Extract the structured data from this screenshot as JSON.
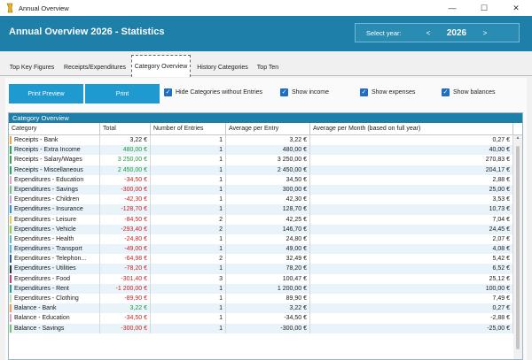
{
  "window": {
    "title": "Annual Overview",
    "minimize": "—",
    "maximize": "☐",
    "close": "✕"
  },
  "header": {
    "title": "Annual Overview  2026 - Statistics",
    "select_year_label": "Select year:",
    "prev": "<",
    "year": "2026",
    "next": ">"
  },
  "tabs": [
    "Top Key Figures",
    "Receipts/Expenditures",
    "Category Overview",
    "History Categories",
    "Top Ten"
  ],
  "toolbar": {
    "print_preview": "Print Preview",
    "print": "Print",
    "checkboxes": [
      {
        "label": "Hide Categories without Entries",
        "checked": true
      },
      {
        "label": "Show income",
        "checked": true
      },
      {
        "label": "Show expenses",
        "checked": true
      },
      {
        "label": "Show balances",
        "checked": true
      }
    ]
  },
  "grid": {
    "title": "Category Overview",
    "columns": [
      "Category",
      "Total",
      "Number of Entries",
      "Average per Entry",
      "Average per Month (based on full year)"
    ],
    "rows": [
      {
        "category": "Receipts - Bank",
        "total": "3,22 €",
        "entries": "1",
        "avg_entry": "3,22 €",
        "avg_month": "0,27 €",
        "color": "#f4a340",
        "tone": "neutral"
      },
      {
        "category": "Receipts - Extra Income",
        "total": "480,00 €",
        "entries": "1",
        "avg_entry": "480,00 €",
        "avg_month": "40,00 €",
        "color": "#2fa84f",
        "tone": "pos"
      },
      {
        "category": "Receipts - Salary/Wages",
        "total": "3 250,00 €",
        "entries": "1",
        "avg_entry": "3 250,00 €",
        "avg_month": "270,83 €",
        "color": "#2fa84f",
        "tone": "pos"
      },
      {
        "category": "Receipts - Miscellaneous",
        "total": "2 450,00 €",
        "entries": "1",
        "avg_entry": "2 450,00 €",
        "avg_month": "204,17 €",
        "color": "#2fa84f",
        "tone": "pos"
      },
      {
        "category": "Expenditures - Education",
        "total": "-34,50 €",
        "entries": "1",
        "avg_entry": "34,50 €",
        "avg_month": "2,88 €",
        "color": "#e7a0c8",
        "tone": "neg"
      },
      {
        "category": "Expenditures - Savings",
        "total": "-300,00 €",
        "entries": "1",
        "avg_entry": "300,00 €",
        "avg_month": "25,00 €",
        "color": "#7cc36a",
        "tone": "neg"
      },
      {
        "category": "Expenditures - Children",
        "total": "-42,30 €",
        "entries": "1",
        "avg_entry": "42,30 €",
        "avg_month": "3,53 €",
        "color": "#c5a0d8",
        "tone": "neg"
      },
      {
        "category": "Expenditures - Insurance",
        "total": "-128,70 €",
        "entries": "1",
        "avg_entry": "128,70 €",
        "avg_month": "10,73 €",
        "color": "#3b8fd1",
        "tone": "neg"
      },
      {
        "category": "Expenditures - Leisure",
        "total": "-84,50 €",
        "entries": "2",
        "avg_entry": "42,25 €",
        "avg_month": "7,04 €",
        "color": "#f2c94c",
        "tone": "neg"
      },
      {
        "category": "Expenditures - Vehicle",
        "total": "-293,40 €",
        "entries": "2",
        "avg_entry": "146,70 €",
        "avg_month": "24,45 €",
        "color": "#9acd32",
        "tone": "neg"
      },
      {
        "category": "Expenditures - Health",
        "total": "-24,80 €",
        "entries": "1",
        "avg_entry": "24,80 €",
        "avg_month": "2,07 €",
        "color": "#4fc3c9",
        "tone": "neg"
      },
      {
        "category": "Expenditures - Transport",
        "total": "-49,00 €",
        "entries": "1",
        "avg_entry": "49,00 €",
        "avg_month": "4,08 €",
        "color": "#5fb3e3",
        "tone": "neg"
      },
      {
        "category": "Expenditures - Telephon...",
        "total": "-64,98 €",
        "entries": "2",
        "avg_entry": "32,49 €",
        "avg_month": "5,42 €",
        "color": "#1e5fa8",
        "tone": "neg"
      },
      {
        "category": "Expenditures - Utilities",
        "total": "-78,20 €",
        "entries": "1",
        "avg_entry": "78,20 €",
        "avg_month": "6,52 €",
        "color": "#333333",
        "tone": "neg"
      },
      {
        "category": "Expenditures - Food",
        "total": "-301,40 €",
        "entries": "3",
        "avg_entry": "100,47 €",
        "avg_month": "25,12 €",
        "color": "#d2378a",
        "tone": "neg"
      },
      {
        "category": "Expenditures - Rent",
        "total": "-1 200,00 €",
        "entries": "1",
        "avg_entry": "1 200,00 €",
        "avg_month": "100,00 €",
        "color": "#2a9d8f",
        "tone": "neg"
      },
      {
        "category": "Expenditures - Clothing",
        "total": "-89,90 €",
        "entries": "1",
        "avg_entry": "89,90 €",
        "avg_month": "7,49 €",
        "color": "#bde0a8",
        "tone": "neg"
      },
      {
        "category": "Balance - Bank",
        "total": "3,22 €",
        "entries": "1",
        "avg_entry": "3,22 €",
        "avg_month": "0,27 €",
        "color": "#f4a340",
        "tone": "pos"
      },
      {
        "category": "Balance - Education",
        "total": "-34,50 €",
        "entries": "1",
        "avg_entry": "-34,50 €",
        "avg_month": "-2,88 €",
        "color": "#e7a0c8",
        "tone": "neg"
      },
      {
        "category": "Balance - Savings",
        "total": "-300,00 €",
        "entries": "1",
        "avg_entry": "-300,00 €",
        "avg_month": "-25,00 €",
        "color": "#7cc36a",
        "tone": "neg"
      }
    ]
  }
}
